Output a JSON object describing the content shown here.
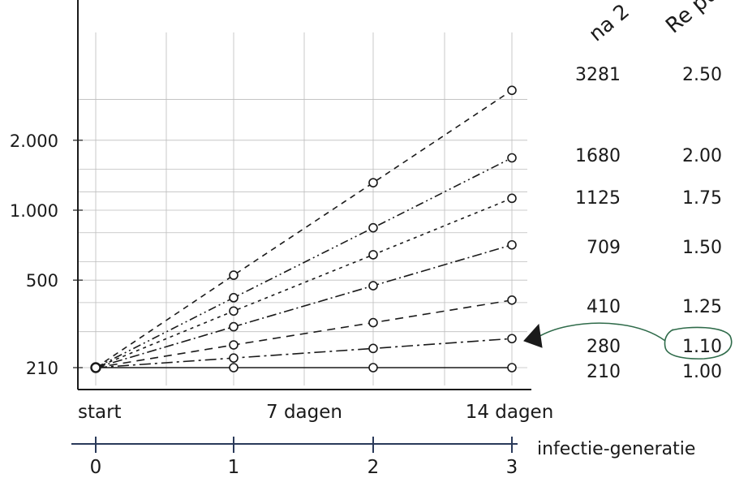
{
  "chart_data": {
    "type": "line",
    "scale_y": "log",
    "grid": true,
    "y_ticks": [
      {
        "value": 210,
        "label": "210"
      },
      {
        "value": 500,
        "label": "500"
      },
      {
        "value": 1000,
        "label": "1.000"
      },
      {
        "value": 2000,
        "label": "2.000"
      }
    ],
    "x_time_labels": [
      "start",
      "7 dagen",
      "14 dagen"
    ],
    "generation_axis": {
      "label": "infectie-generatie",
      "ticks": [
        "0",
        "1",
        "2",
        "3"
      ]
    },
    "x": [
      0,
      1,
      2,
      3
    ],
    "series": [
      {
        "R": 2.5,
        "values": [
          210,
          525,
          1313,
          3281
        ]
      },
      {
        "R": 2.0,
        "values": [
          210,
          420,
          840,
          1680
        ]
      },
      {
        "R": 1.75,
        "values": [
          210,
          368,
          643,
          1125
        ]
      },
      {
        "R": 1.5,
        "values": [
          210,
          315,
          473,
          709
        ]
      },
      {
        "R": 1.25,
        "values": [
          210,
          263,
          328,
          410
        ]
      },
      {
        "R": 1.1,
        "values": [
          210,
          231,
          254,
          280
        ]
      },
      {
        "R": 1.0,
        "values": [
          210,
          210,
          210,
          210
        ]
      }
    ],
    "right_table": {
      "header_left": "na 2",
      "header_right": "Re puls",
      "rows": [
        {
          "count": "3281",
          "r": "2.50"
        },
        {
          "count": "1680",
          "r": "2.00"
        },
        {
          "count": "1125",
          "r": "1.75"
        },
        {
          "count": "709",
          "r": "1.50"
        },
        {
          "count": "410",
          "r": "1.25"
        },
        {
          "count": "280",
          "r": "1.10"
        },
        {
          "count": "210",
          "r": "1.00"
        }
      ]
    },
    "highlighted_row_r": "1.10",
    "colors": {
      "ink": "#1a1a1a",
      "grid": "#bdbdbd",
      "generation_axis": "#2a3a5a",
      "annotation": "#2f6b4a"
    }
  }
}
